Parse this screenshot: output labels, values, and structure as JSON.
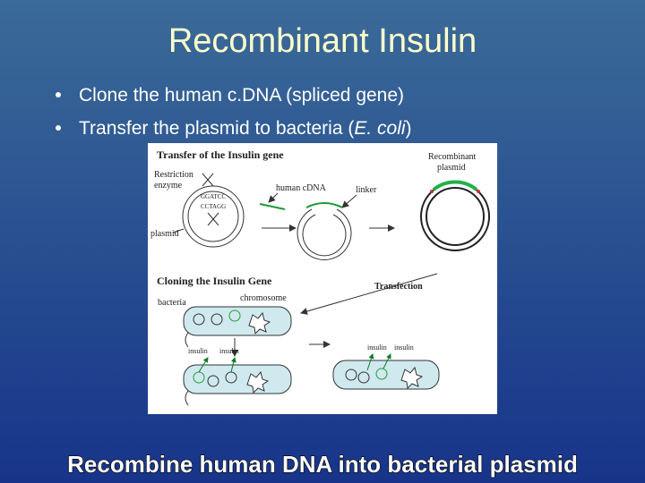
{
  "title": "Recombinant Insulin",
  "bullets": [
    {
      "text": "Clone the human c.DNA (spliced gene)"
    },
    {
      "before": "Transfer the plasmid to bacteria (",
      "italic": "E. coli",
      "after": ")"
    }
  ],
  "figure": {
    "transfer_heading": "Transfer of the Insulin gene",
    "restriction": "Restriction",
    "enzyme": "enzyme",
    "site_top": "GGATCC",
    "site_bottom": "CCTAGG",
    "plasmid": "plasmid",
    "human_cdna": "human cDNA",
    "linker": "linker",
    "recombinant": "Recombinant",
    "recombinant_plasmid": "plasmid",
    "cloning_heading": "Cloning the Insulin Gene",
    "chromosome": "chromosome",
    "bacteria": "bacteria",
    "transfection": "Transfection",
    "insulin_labels": [
      "insulin",
      "insulin",
      "insulin",
      "insulin"
    ]
  },
  "caption": "Recombine human DNA into bacterial plasmid"
}
